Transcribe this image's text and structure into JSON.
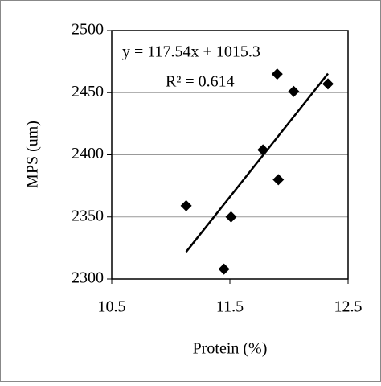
{
  "chart_data": {
    "type": "scatter",
    "x_label": "Protein (%)",
    "y_label": "MPS (um)",
    "annotations": [
      "y = 117.54x + 1015.3",
      "R² = 0.614"
    ],
    "x": [
      11.13,
      11.45,
      11.51,
      11.78,
      11.9,
      11.91,
      12.04,
      12.33
    ],
    "values": [
      2359,
      2308,
      2350,
      2404,
      2465,
      2380,
      2451,
      2457
    ],
    "color": "#000000",
    "xlim": [
      10.5,
      12.5
    ],
    "xticks": [
      10.5,
      11.5,
      12.5
    ],
    "ylim": [
      2300,
      2500
    ],
    "yticks": [
      2300,
      2350,
      2400,
      2450,
      2500
    ],
    "grid": true,
    "trendline": true
  }
}
